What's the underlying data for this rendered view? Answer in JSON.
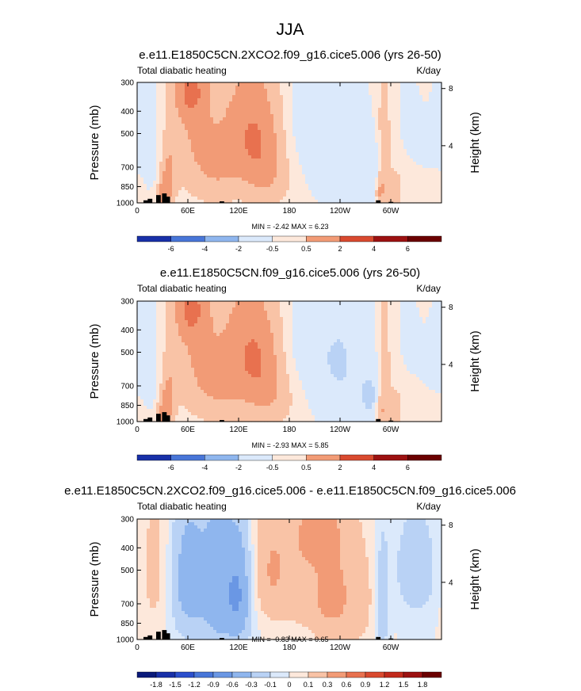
{
  "figure": {
    "title": "JJA"
  },
  "colors": {
    "positive": [
      "#fde8db",
      "#f9c3a6",
      "#f29b76",
      "#e8714f",
      "#d94a2f",
      "#c22a1c",
      "#9c1111",
      "#6b0000"
    ],
    "negative": [
      "#dbe9fb",
      "#b9d2f5",
      "#8fb6ee",
      "#6a97e4",
      "#4876d8",
      "#2b4fcc",
      "#1830a8",
      "#0a1a7a"
    ],
    "terrain": "#000000"
  },
  "chart_data": [
    {
      "type": "heatmap",
      "title": "e.e11.E1850C5CN.2XCO2.f09_g16.cice5.006 (yrs 26-50)",
      "left_label": "Total diabatic heating",
      "units": "K/day",
      "xlabel": "",
      "ylabel": "Pressure (mb)",
      "ylabel_right": "Height (km)",
      "x_ticks": [
        "0",
        "60E",
        "120E",
        "180",
        "120W",
        "60W"
      ],
      "x_range_degE": [
        0,
        360
      ],
      "y_ticks": [
        "300",
        "400",
        "500",
        "700",
        "850",
        "1000"
      ],
      "y_range_mb": [
        1000,
        300
      ],
      "height_ticks": [
        "8",
        "4"
      ],
      "stats": "MIN =  -2.42  MAX =   6.23",
      "colorbar_levels": [
        "-6",
        "-4",
        "-2",
        "-0.5",
        "0.5",
        "2",
        "4",
        "6"
      ],
      "features": [
        {
          "lon": 30,
          "p": 950,
          "v": 2.5,
          "lonw": 6,
          "pw": 90
        },
        {
          "lon": 35,
          "p": 820,
          "v": 2.5,
          "lonw": 6,
          "pw": 110
        },
        {
          "lon": 38,
          "p": 650,
          "v": 1.2,
          "lonw": 7,
          "pw": 140
        },
        {
          "lon": 63,
          "p": 320,
          "v": 3.5,
          "lonw": 12,
          "pw": 70
        },
        {
          "lon": 70,
          "p": 480,
          "v": 2.0,
          "lonw": 22,
          "pw": 220
        },
        {
          "lon": 95,
          "p": 750,
          "v": 1.4,
          "lonw": 20,
          "pw": 160
        },
        {
          "lon": 130,
          "p": 500,
          "v": 3.2,
          "lonw": 20,
          "pw": 200
        },
        {
          "lon": 150,
          "p": 600,
          "v": 1.8,
          "lonw": 16,
          "pw": 220
        },
        {
          "lon": 160,
          "p": 800,
          "v": 0.8,
          "lonw": 18,
          "pw": 150
        },
        {
          "lon": 10,
          "p": 420,
          "v": -1.0,
          "lonw": 14,
          "pw": 180
        },
        {
          "lon": 22,
          "p": 780,
          "v": -0.8,
          "lonw": 10,
          "pw": 150
        },
        {
          "lon": 235,
          "p": 560,
          "v": -1.8,
          "lonw": 28,
          "pw": 300
        },
        {
          "lon": 200,
          "p": 400,
          "v": -0.8,
          "lonw": 15,
          "pw": 150
        },
        {
          "lon": 280,
          "p": 780,
          "v": -1.5,
          "lonw": 10,
          "pw": 150
        },
        {
          "lon": 287,
          "p": 880,
          "v": 2.5,
          "lonw": 4,
          "pw": 100
        },
        {
          "lon": 292,
          "p": 600,
          "v": 1.8,
          "lonw": 5,
          "pw": 300
        },
        {
          "lon": 305,
          "p": 850,
          "v": 1.0,
          "lonw": 8,
          "pw": 150
        },
        {
          "lon": 340,
          "p": 600,
          "v": -0.5,
          "lonw": 20,
          "pw": 250
        },
        {
          "lon": 320,
          "p": 400,
          "v": -0.6,
          "lonw": 10,
          "pw": 150
        }
      ],
      "terrain": [
        [
          10,
          975
        ],
        [
          15,
          960
        ],
        [
          25,
          925
        ],
        [
          32,
          910
        ],
        [
          36,
          940
        ],
        [
          100,
          985
        ],
        [
          285,
          975
        ],
        [
          300,
          990
        ]
      ]
    },
    {
      "type": "heatmap",
      "title": "e.e11.E1850C5CN.f09_g16.cice5.006 (yrs 26-50)",
      "left_label": "Total diabatic heating",
      "units": "K/day",
      "xlabel": "",
      "ylabel": "Pressure (mb)",
      "ylabel_right": "Height (km)",
      "x_ticks": [
        "0",
        "60E",
        "120E",
        "180",
        "120W",
        "60W"
      ],
      "x_range_degE": [
        0,
        360
      ],
      "y_ticks": [
        "300",
        "400",
        "500",
        "700",
        "850",
        "1000"
      ],
      "y_range_mb": [
        1000,
        300
      ],
      "height_ticks": [
        "8",
        "4"
      ],
      "stats": "MIN =  -2.93  MAX =   5.85",
      "colorbar_levels": [
        "-6",
        "-4",
        "-2",
        "-0.5",
        "0.5",
        "2",
        "4",
        "6"
      ],
      "features": [
        {
          "lon": 30,
          "p": 950,
          "v": 2.5,
          "lonw": 6,
          "pw": 90
        },
        {
          "lon": 35,
          "p": 820,
          "v": 2.5,
          "lonw": 6,
          "pw": 110
        },
        {
          "lon": 38,
          "p": 650,
          "v": 1.2,
          "lonw": 7,
          "pw": 140
        },
        {
          "lon": 63,
          "p": 320,
          "v": 3.5,
          "lonw": 12,
          "pw": 70
        },
        {
          "lon": 72,
          "p": 480,
          "v": 2.0,
          "lonw": 22,
          "pw": 220
        },
        {
          "lon": 95,
          "p": 750,
          "v": 1.4,
          "lonw": 20,
          "pw": 160
        },
        {
          "lon": 130,
          "p": 500,
          "v": 3.3,
          "lonw": 20,
          "pw": 210
        },
        {
          "lon": 150,
          "p": 620,
          "v": 1.8,
          "lonw": 16,
          "pw": 220
        },
        {
          "lon": 165,
          "p": 820,
          "v": 0.8,
          "lonw": 18,
          "pw": 150
        },
        {
          "lon": 10,
          "p": 420,
          "v": -1.0,
          "lonw": 14,
          "pw": 180
        },
        {
          "lon": 22,
          "p": 780,
          "v": -0.8,
          "lonw": 10,
          "pw": 150
        },
        {
          "lon": 240,
          "p": 560,
          "v": -2.1,
          "lonw": 28,
          "pw": 320
        },
        {
          "lon": 200,
          "p": 420,
          "v": -0.9,
          "lonw": 15,
          "pw": 150
        },
        {
          "lon": 278,
          "p": 800,
          "v": -1.8,
          "lonw": 10,
          "pw": 150
        },
        {
          "lon": 287,
          "p": 900,
          "v": 2.5,
          "lonw": 4,
          "pw": 100
        },
        {
          "lon": 292,
          "p": 600,
          "v": 1.8,
          "lonw": 5,
          "pw": 300
        },
        {
          "lon": 305,
          "p": 850,
          "v": 1.0,
          "lonw": 8,
          "pw": 150
        },
        {
          "lon": 345,
          "p": 600,
          "v": -0.5,
          "lonw": 20,
          "pw": 250
        },
        {
          "lon": 320,
          "p": 400,
          "v": -0.6,
          "lonw": 10,
          "pw": 150
        }
      ],
      "terrain": [
        [
          10,
          975
        ],
        [
          15,
          960
        ],
        [
          25,
          925
        ],
        [
          32,
          910
        ],
        [
          36,
          940
        ],
        [
          100,
          985
        ],
        [
          285,
          975
        ],
        [
          300,
          990
        ]
      ]
    },
    {
      "type": "heatmap",
      "title": "e.e11.E1850C5CN.2XCO2.f09_g16.cice5.006 - e.e11.E1850C5CN.f09_g16.cice5.006",
      "left_label": "Total diabatic heating",
      "units": "K/day",
      "xlabel": "",
      "ylabel": "Pressure (mb)",
      "ylabel_right": "Height (km)",
      "x_ticks": [
        "0",
        "60E",
        "120E",
        "180",
        "120W",
        "60W"
      ],
      "x_range_degE": [
        0,
        360
      ],
      "y_ticks": [
        "300",
        "400",
        "500",
        "700",
        "850",
        "1000"
      ],
      "y_range_mb": [
        1000,
        300
      ],
      "height_ticks": [
        "8",
        "4"
      ],
      "stats": "MIN =  -0.83  MAX =   0.65",
      "colorbar_levels": [
        "-1.8",
        "-1.5",
        "-1.2",
        "-0.9",
        "-0.6",
        "-0.3",
        "-0.1",
        "0",
        "0.1",
        "0.3",
        "0.6",
        "0.9",
        "1.2",
        "1.5",
        "1.8"
      ],
      "features": [
        {
          "lon": 60,
          "p": 550,
          "v": -0.45,
          "lonw": 14,
          "pw": 250
        },
        {
          "lon": 95,
          "p": 600,
          "v": -0.5,
          "lonw": 14,
          "pw": 300
        },
        {
          "lon": 120,
          "p": 650,
          "v": -0.55,
          "lonw": 10,
          "pw": 250
        },
        {
          "lon": 160,
          "p": 500,
          "v": 0.3,
          "lonw": 15,
          "pw": 200
        },
        {
          "lon": 230,
          "p": 650,
          "v": 0.35,
          "lonw": 30,
          "pw": 300
        },
        {
          "lon": 210,
          "p": 350,
          "v": 0.3,
          "lonw": 20,
          "pw": 80
        },
        {
          "lon": 290,
          "p": 700,
          "v": -0.3,
          "lonw": 5,
          "pw": 250
        },
        {
          "lon": 330,
          "p": 500,
          "v": -0.2,
          "lonw": 20,
          "pw": 200
        },
        {
          "lon": 20,
          "p": 500,
          "v": 0.15,
          "lonw": 15,
          "pw": 300
        },
        {
          "lon": 200,
          "p": 930,
          "v": -0.08,
          "lonw": 25,
          "pw": 60
        }
      ],
      "terrain": [
        [
          10,
          975
        ],
        [
          15,
          960
        ],
        [
          25,
          925
        ],
        [
          32,
          910
        ],
        [
          36,
          940
        ],
        [
          100,
          985
        ],
        [
          285,
          975
        ],
        [
          300,
          990
        ]
      ]
    }
  ]
}
